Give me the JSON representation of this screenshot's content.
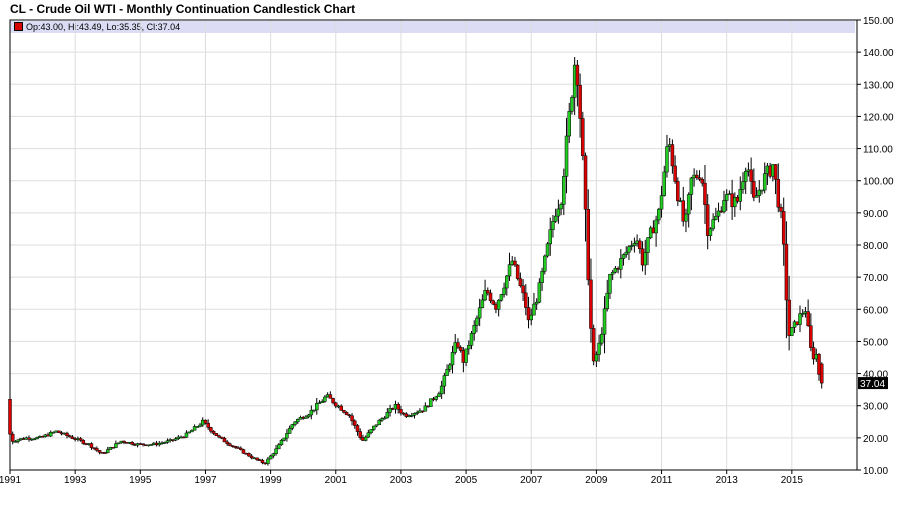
{
  "title": "CL - Crude Oil WTI - Monthly Continuation Candlestick Chart",
  "legend": {
    "text": "Op:43.00, Hi:43.49, Lo:35.35, Cl:37.04"
  },
  "last_price_label": "37.04",
  "colors": {
    "up": "#22cc22",
    "down": "#dd0000",
    "wick": "#000000",
    "grid": "#dddddd",
    "legend_bg": "#dcdcf5",
    "price_tag": "#000000"
  },
  "chart_data": {
    "type": "candlestick",
    "title": "CL - Crude Oil WTI - Monthly Continuation Candlestick Chart",
    "xlabel": "",
    "ylabel": "",
    "x_ticks": [
      "1991",
      "1993",
      "1995",
      "1997",
      "1999",
      "2001",
      "2003",
      "2005",
      "2007",
      "2009",
      "2011",
      "2013",
      "2015"
    ],
    "y_ticks": [
      "10.00",
      "20.00",
      "30.00",
      "40.00",
      "50.00",
      "60.00",
      "70.00",
      "80.00",
      "90.00",
      "100.00",
      "110.00",
      "120.00",
      "130.00",
      "140.00",
      "150.00"
    ],
    "xlim": [
      1991.0,
      2017.0
    ],
    "ylim": [
      10,
      150
    ],
    "y_axis_side": "right",
    "grid": true,
    "last_bar": {
      "open": 43.0,
      "high": 43.49,
      "low": 35.35,
      "close": 37.04
    },
    "anchors": [
      [
        1991.0,
        32
      ],
      [
        1991.1,
        19
      ],
      [
        1991.6,
        20
      ],
      [
        1992.0,
        20
      ],
      [
        1992.5,
        22
      ],
      [
        1993.0,
        20
      ],
      [
        1993.5,
        18
      ],
      [
        1993.9,
        15
      ],
      [
        1994.5,
        19
      ],
      [
        1995.0,
        18
      ],
      [
        1995.5,
        18
      ],
      [
        1996.0,
        19
      ],
      [
        1996.5,
        21
      ],
      [
        1997.0,
        25
      ],
      [
        1997.5,
        20
      ],
      [
        1998.0,
        17
      ],
      [
        1998.5,
        14
      ],
      [
        1998.9,
        12
      ],
      [
        1999.3,
        17
      ],
      [
        1999.8,
        25
      ],
      [
        2000.3,
        28
      ],
      [
        2000.8,
        33
      ],
      [
        2001.5,
        27
      ],
      [
        2001.9,
        19
      ],
      [
        2002.3,
        24
      ],
      [
        2002.9,
        30
      ],
      [
        2003.2,
        27
      ],
      [
        2003.8,
        29
      ],
      [
        2004.3,
        35
      ],
      [
        2004.8,
        50
      ],
      [
        2005.0,
        44
      ],
      [
        2005.7,
        66
      ],
      [
        2006.0,
        61
      ],
      [
        2006.5,
        75
      ],
      [
        2006.9,
        62
      ],
      [
        2007.0,
        56
      ],
      [
        2007.3,
        65
      ],
      [
        2007.8,
        90
      ],
      [
        2008.0,
        95
      ],
      [
        2008.45,
        140
      ],
      [
        2008.55,
        126
      ],
      [
        2008.7,
        100
      ],
      [
        2008.9,
        56
      ],
      [
        2009.0,
        43
      ],
      [
        2009.2,
        50
      ],
      [
        2009.5,
        70
      ],
      [
        2009.9,
        76
      ],
      [
        2010.3,
        83
      ],
      [
        2010.5,
        75
      ],
      [
        2010.8,
        85
      ],
      [
        2011.0,
        90
      ],
      [
        2011.3,
        113
      ],
      [
        2011.6,
        95
      ],
      [
        2011.8,
        85
      ],
      [
        2012.0,
        100
      ],
      [
        2012.3,
        103
      ],
      [
        2012.5,
        85
      ],
      [
        2012.8,
        89
      ],
      [
        2013.0,
        95
      ],
      [
        2013.4,
        93
      ],
      [
        2013.7,
        107
      ],
      [
        2013.9,
        93
      ],
      [
        2014.2,
        100
      ],
      [
        2014.5,
        105
      ],
      [
        2014.8,
        85
      ],
      [
        2014.9,
        66
      ],
      [
        2015.0,
        52
      ],
      [
        2015.4,
        59
      ],
      [
        2015.5,
        60
      ],
      [
        2015.7,
        45
      ],
      [
        2015.85,
        46
      ],
      [
        2015.95,
        37
      ]
    ]
  }
}
